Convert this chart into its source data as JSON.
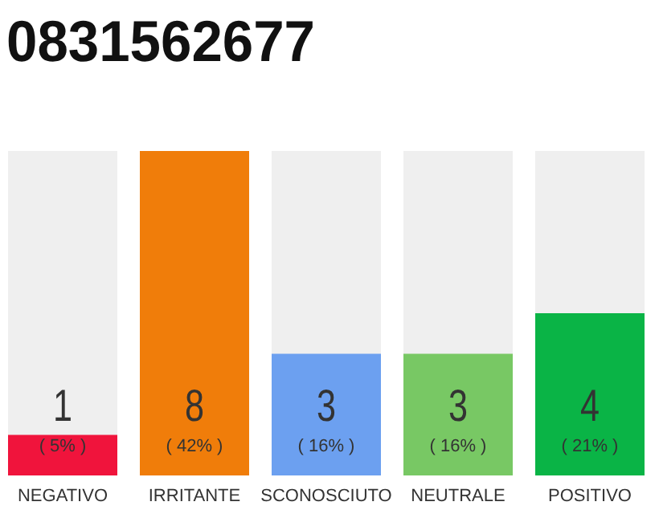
{
  "chart_data": {
    "type": "bar",
    "title": "0831562677",
    "categories": [
      "NEGATIVO",
      "IRRITANTE",
      "SCONOSCIUTO",
      "NEUTRALE",
      "POSITIVO"
    ],
    "values": [
      1,
      8,
      3,
      3,
      4
    ],
    "colors": [
      "#f0143c",
      "#f07d0a",
      "#6ca0f0",
      "#78c864",
      "#0ab446"
    ],
    "ylim": [
      0,
      8
    ],
    "data_labels": true,
    "annotations": [
      "( 5% )",
      "( 42% )",
      "( 16% )",
      "( 16% )",
      "( 21% )"
    ]
  }
}
